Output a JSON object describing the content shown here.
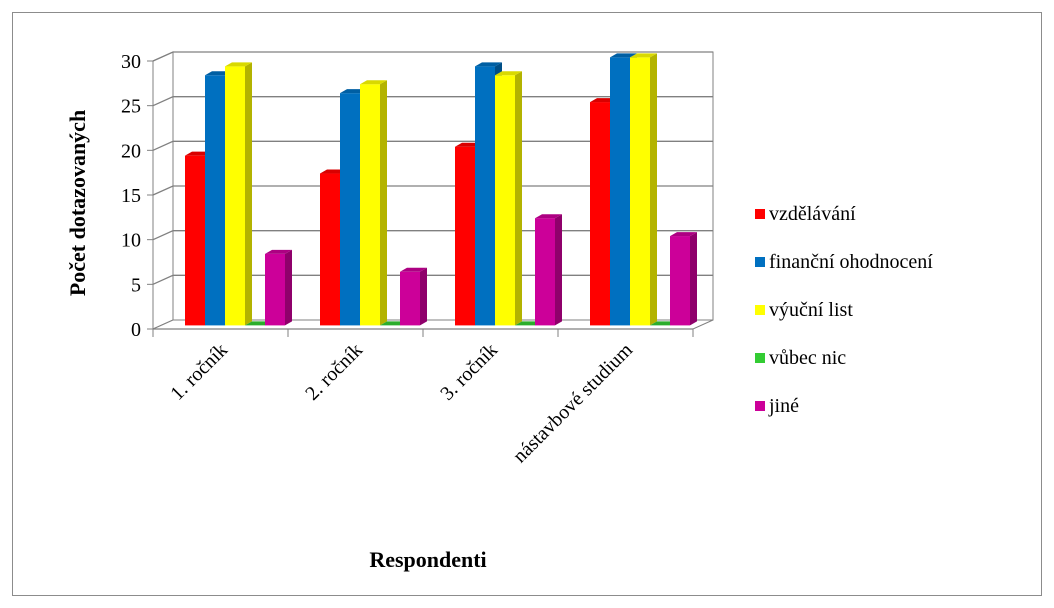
{
  "chart_data": {
    "type": "bar",
    "title": "",
    "xlabel": "Respondenti",
    "ylabel": "Počet dotazovaných",
    "ylim": [
      0,
      30
    ],
    "yticks": [
      0,
      5,
      10,
      15,
      20,
      25,
      30
    ],
    "grid": true,
    "legend_position": "right",
    "categories": [
      "1. ročník",
      "2. ročník",
      "3. ročník",
      "nástavbové studium"
    ],
    "series": [
      {
        "name": "vzdělávání",
        "color": "#ff0000",
        "values": [
          19,
          17,
          20,
          25
        ]
      },
      {
        "name": "finanční ohodnocení",
        "color": "#0070c0",
        "values": [
          28,
          26,
          29,
          30
        ]
      },
      {
        "name": "výuční list",
        "color": "#ffff00",
        "values": [
          29,
          27,
          28,
          30
        ]
      },
      {
        "name": "vůbec nic",
        "color": "#33cc33",
        "values": [
          0,
          0,
          0,
          0
        ]
      },
      {
        "name": "jiné",
        "color": "#cc0099",
        "values": [
          8,
          6,
          12,
          10
        ]
      }
    ]
  }
}
